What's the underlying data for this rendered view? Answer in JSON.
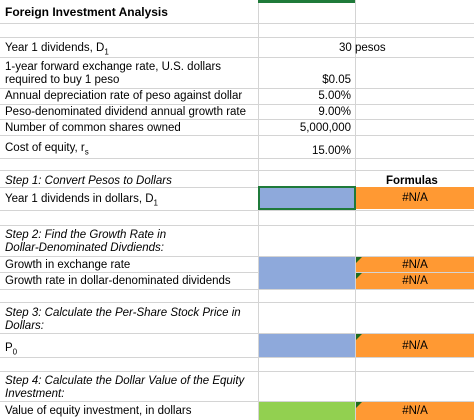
{
  "sheet": {
    "title": "Foreign Investment Analysis",
    "inputs": [
      {
        "label_html": "Year 1 dividends, D",
        "label_sub": "1",
        "value": "30 pesos"
      },
      {
        "label_line1": "1-year forward exchange rate, U.S. dollars",
        "label_line2": "required to buy 1 peso",
        "value": "$0.05"
      },
      {
        "label": "Annual depreciation rate of peso against dollar",
        "value": "5.00%"
      },
      {
        "label": "Peso-denominated dividend annual growth rate",
        "value": "9.00%"
      },
      {
        "label": "Number of common shares owned",
        "value": "5,000,000"
      },
      {
        "label_html": "Cost of equity, r",
        "label_sub": "s",
        "value": "15.00%"
      }
    ],
    "formulas_header": "Formulas",
    "step1": {
      "title": "Step 1:  Convert Pesos to Dollars",
      "row_label": "Year 1 dividends in dollars, D",
      "row_sub": "1",
      "formula": "#N/A"
    },
    "step2": {
      "title_line1": "Step 2:  Find the Growth Rate in",
      "title_line2": "Dollar-Denominated Divdiends:",
      "row1_label": "Growth in exchange rate",
      "row1_formula": "#N/A",
      "row2_label": "Growth rate in dollar-denominated dividends",
      "row2_formula": "#N/A"
    },
    "step3": {
      "title_line1": "Step 3:  Calculate the Per-Share Stock Price in",
      "title_line2": "Dollars:",
      "row_label": "P",
      "row_sub": "0",
      "formula": "#N/A"
    },
    "step4": {
      "title_line1": "Step 4:  Calculate the Dollar Value of the Equity",
      "title_line2": "Investment:",
      "row_label": "Value of equity investment, in dollars",
      "formula": "#N/A"
    }
  }
}
